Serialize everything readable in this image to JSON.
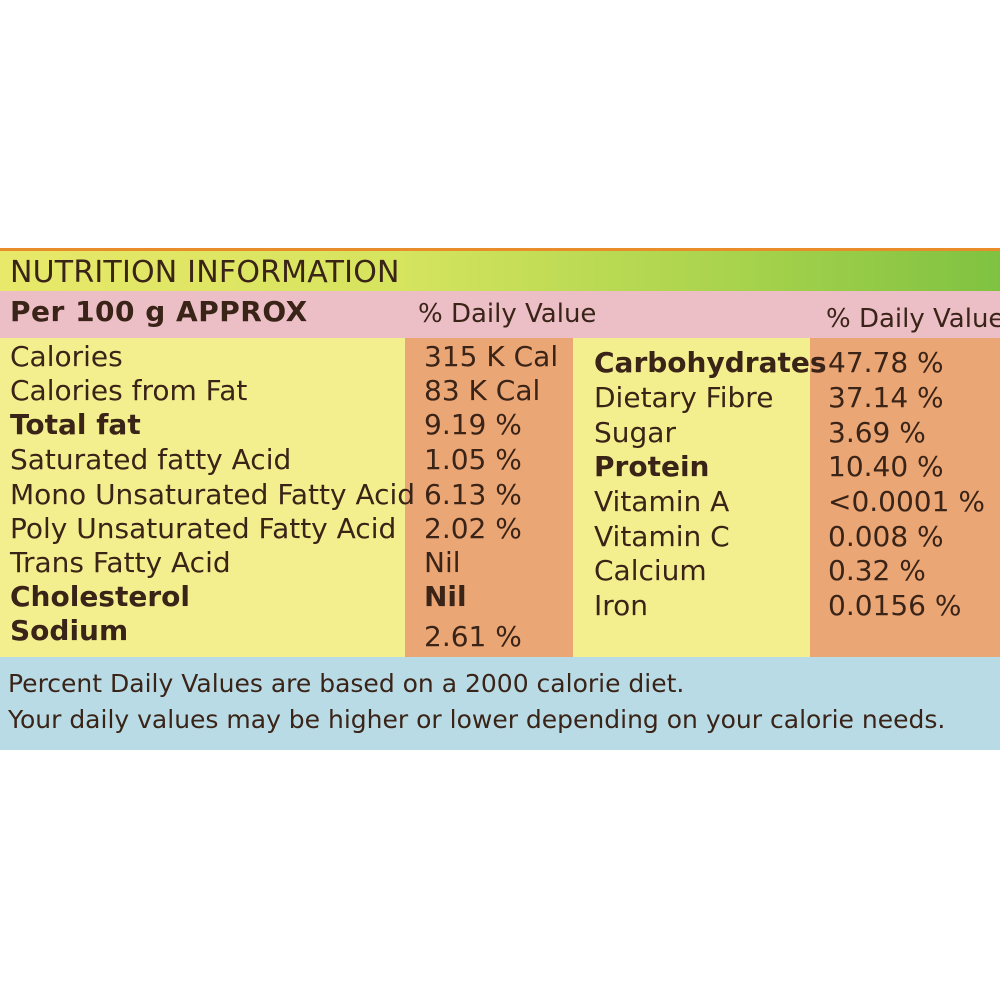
{
  "title": "NUTRITION INFORMATION",
  "header": {
    "per": "Per 100 g APPROX",
    "daily_value_left": "% Daily Value",
    "daily_value_right": "% Daily Value"
  },
  "left_rows": [
    {
      "label": "Calories",
      "value": "315 K Cal",
      "bold": false
    },
    {
      "label": "Calories from Fat",
      "value": "83 K Cal",
      "bold": false
    },
    {
      "label": "Total fat",
      "value": "9.19 %",
      "bold": true
    },
    {
      "label": "Saturated fatty Acid",
      "value": "1.05 %",
      "bold": false
    },
    {
      "label": "Mono Unsaturated Fatty Acid",
      "value": "6.13 %",
      "bold": false
    },
    {
      "label": "Poly Unsaturated Fatty Acid",
      "value": "2.02 %",
      "bold": false
    },
    {
      "label": "Trans Fatty Acid",
      "value": "Nil",
      "bold": false
    },
    {
      "label": "Cholesterol",
      "value": "Nil",
      "bold": true
    },
    {
      "label": "Sodium",
      "value": "2.61 %",
      "bold": true
    }
  ],
  "right_rows": [
    {
      "label": "Carbohydrates",
      "value": "47.78 %",
      "bold": true
    },
    {
      "label": "Dietary Fibre",
      "value": "37.14 %",
      "bold": false
    },
    {
      "label": "Sugar",
      "value": "3.69 %",
      "bold": false
    },
    {
      "label": "Protein",
      "value": "10.40 %",
      "bold": true
    },
    {
      "label": "Vitamin A",
      "value": "<0.0001 %",
      "bold": false
    },
    {
      "label": "Vitamin C",
      "value": "0.008 %",
      "bold": false
    },
    {
      "label": "Calcium",
      "value": "0.32 %",
      "bold": false
    },
    {
      "label": "Iron",
      "value": "0.0156 %",
      "bold": false
    }
  ],
  "footer": {
    "line1": "Percent Daily Values are based on a 2000 calorie diet.",
    "line2": "Your daily values may be higher or lower depending on your calorie needs."
  }
}
